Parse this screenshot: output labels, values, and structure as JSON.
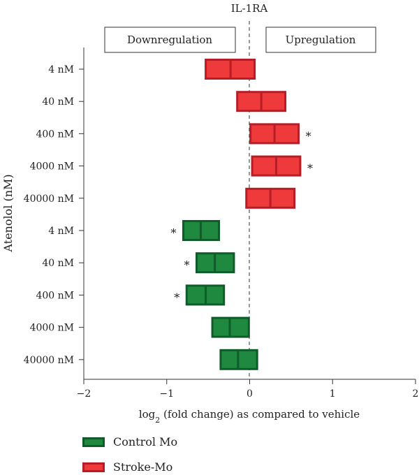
{
  "chart_data": {
    "type": "box",
    "title": "IL-1RA",
    "xlabel_main": "log",
    "xlabel_sub": "2",
    "xlabel_rest": " (fold change) as compared to vehicle",
    "ylabel": "Atenolol (nM)",
    "xlim": [
      -2,
      2
    ],
    "xticks": [
      "-2",
      "-1",
      "0",
      "1",
      "2"
    ],
    "annotations": {
      "down": "Downregulation",
      "up": "Upregulation"
    },
    "categories": [
      "4 nM",
      "40 nM",
      "400 nM",
      "4000 nM",
      "40000 nM",
      "4 nM",
      "40 nM",
      "400 nM",
      "4000 nM",
      "40000 nM"
    ],
    "series": [
      {
        "name": "Stroke-Mo",
        "fill": "#ee3a3a",
        "stroke": "#b81c24",
        "rows": [
          0,
          1,
          2,
          3,
          4
        ],
        "min": [
          -0.53,
          -0.15,
          0.01,
          0.03,
          -0.04
        ],
        "median": [
          -0.23,
          0.14,
          0.3,
          0.32,
          0.25
        ],
        "max": [
          0.06,
          0.43,
          0.59,
          0.61,
          0.54
        ],
        "significant": [
          false,
          false,
          true,
          true,
          false
        ]
      },
      {
        "name": "Control Mo",
        "fill": "#1f8a3f",
        "stroke": "#0f5c2a",
        "rows": [
          5,
          6,
          7,
          8,
          9
        ],
        "min": [
          -0.8,
          -0.64,
          -0.76,
          -0.45,
          -0.35
        ],
        "median": [
          -0.59,
          -0.42,
          -0.53,
          -0.24,
          -0.14
        ],
        "max": [
          -0.37,
          -0.19,
          -0.31,
          -0.01,
          0.09
        ],
        "significant": [
          true,
          true,
          true,
          false,
          false
        ]
      }
    ],
    "marker": "*"
  },
  "legend": [
    {
      "label": "Control Mo",
      "fill": "#1f8a3f",
      "stroke": "#0f5c2a"
    },
    {
      "label": "Stroke-Mo",
      "fill": "#ee3a3a",
      "stroke": "#b81c24"
    }
  ]
}
